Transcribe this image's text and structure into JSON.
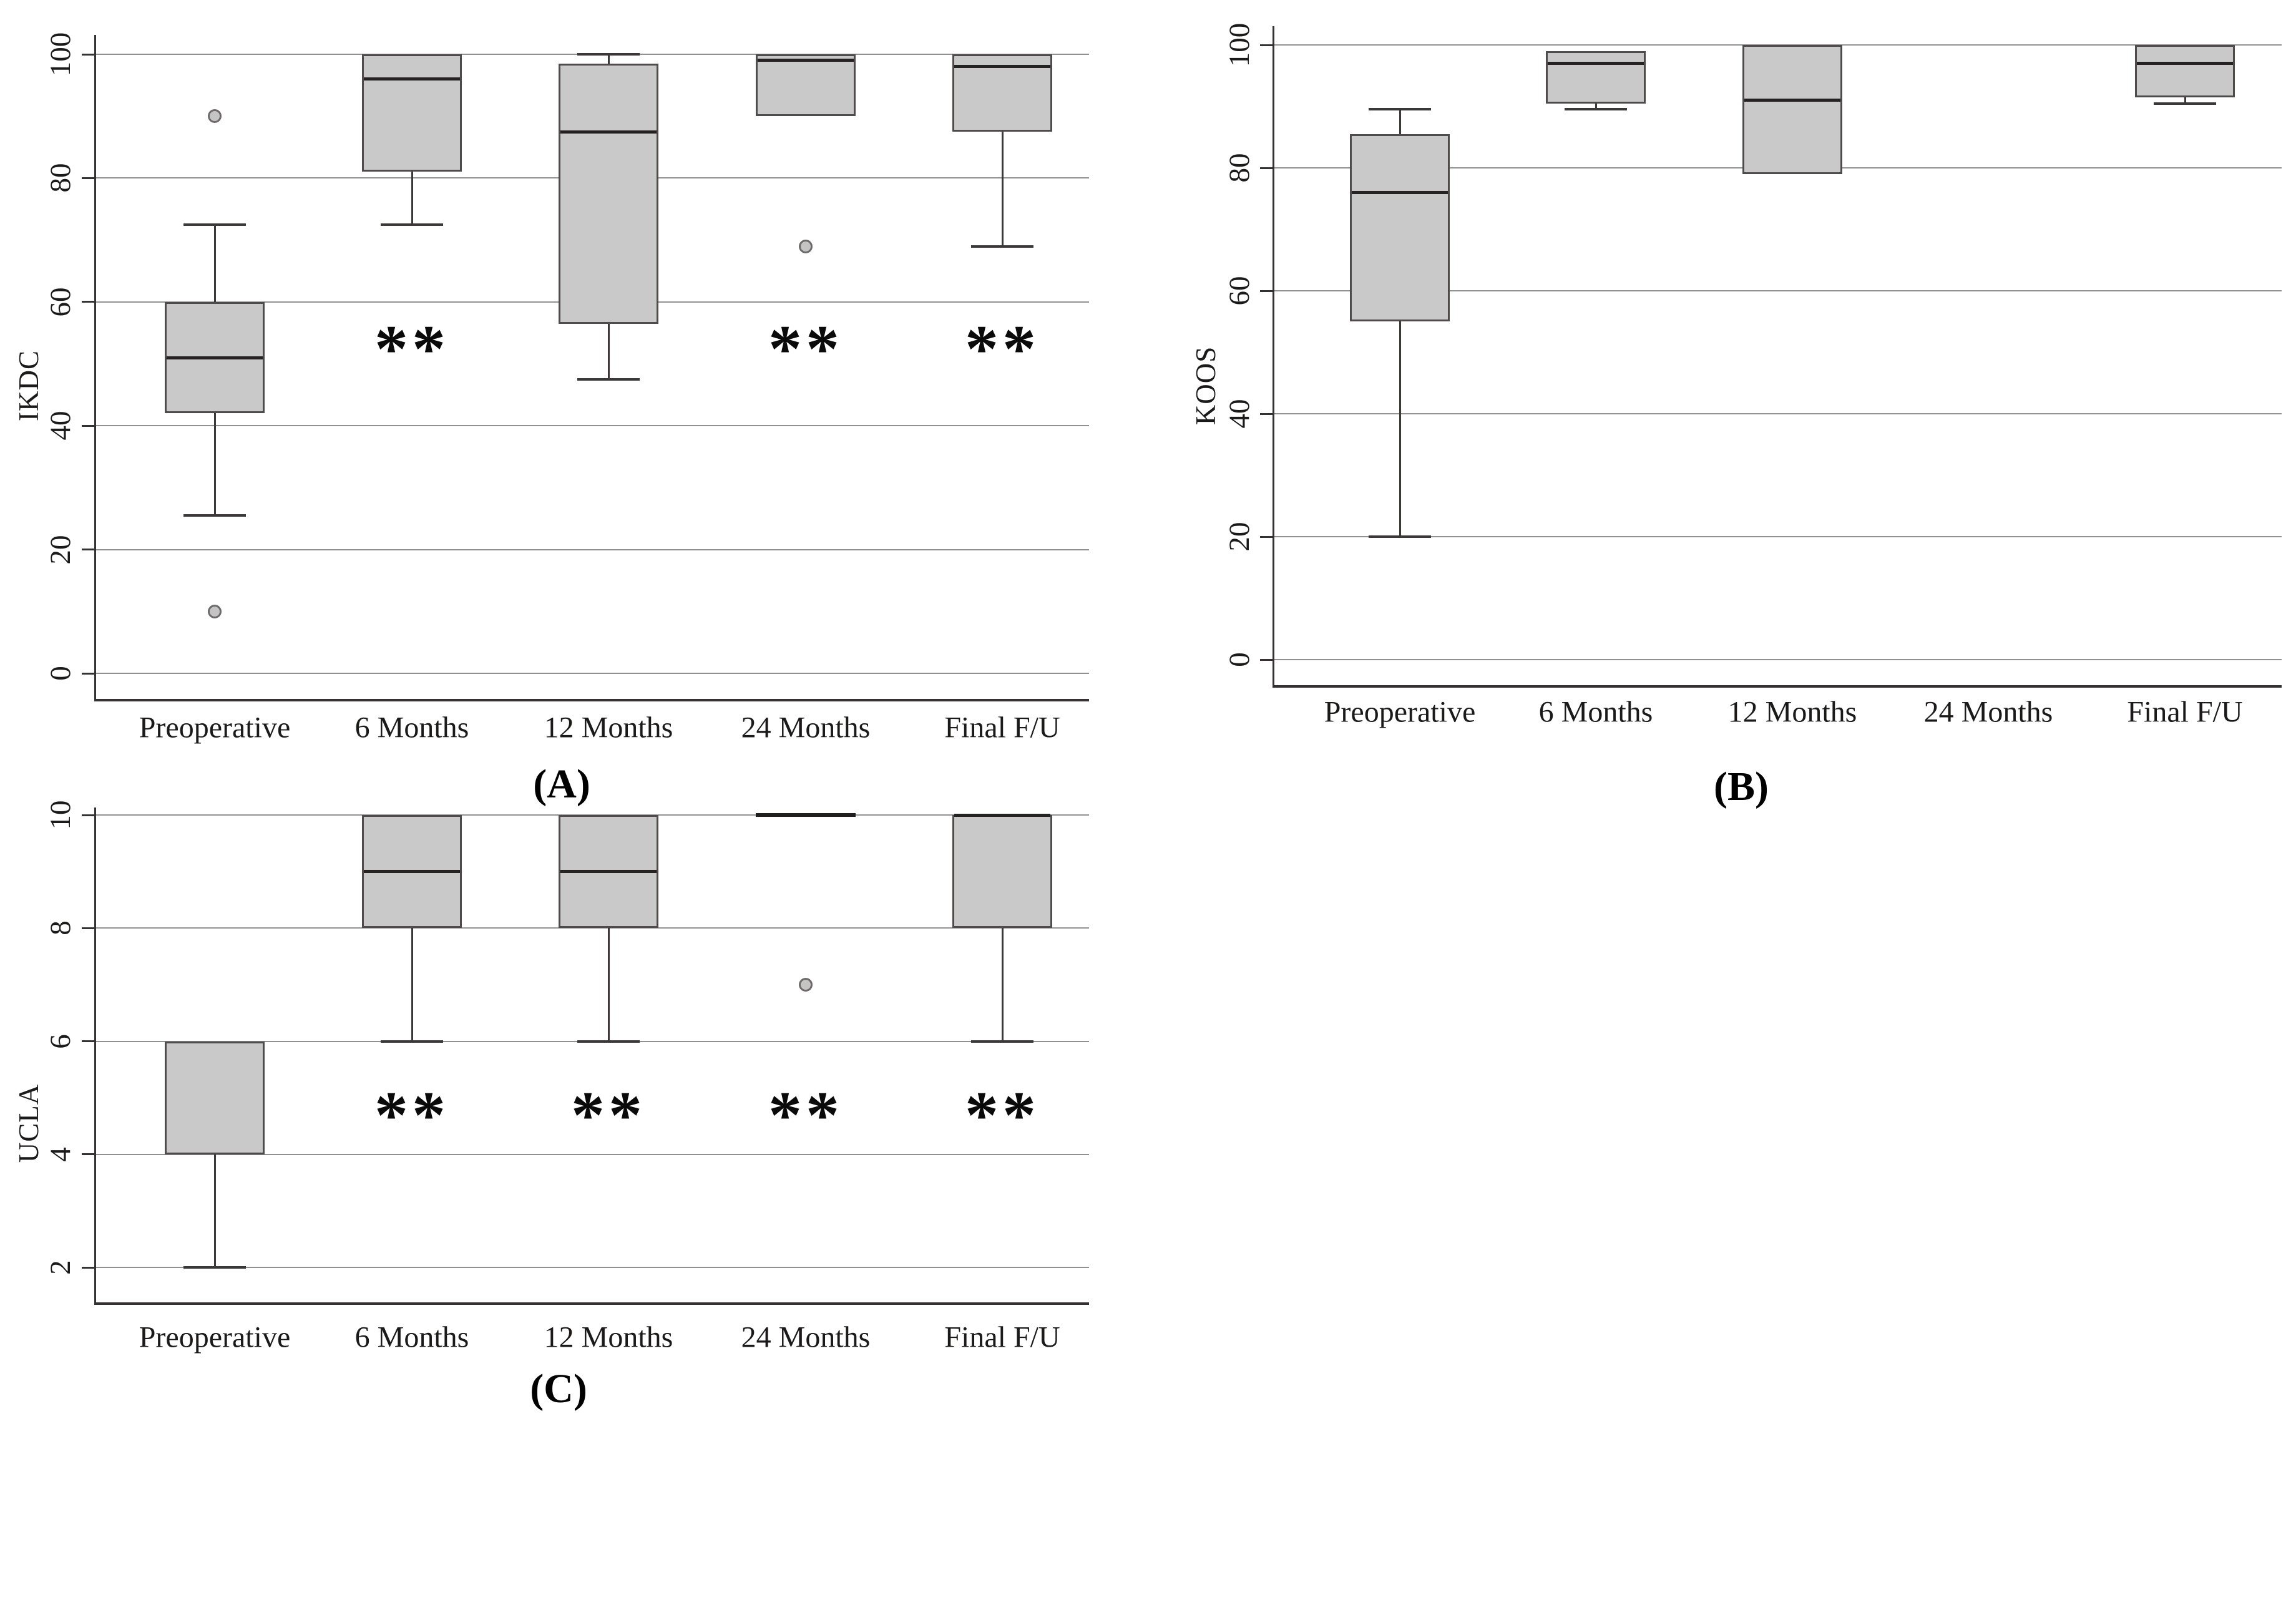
{
  "page": {
    "background": "#ffffff"
  },
  "colors": {
    "box_fill": "#c9c9c9",
    "box_border": "#4f4b4a",
    "median": "#262221",
    "whisker": "#3c3838",
    "gridline": "#919191",
    "axis": "#353130",
    "outlier_fill": "#c4c4c4",
    "outlier_stroke": "#6e6a69",
    "text": "#1c1a19"
  },
  "significance_marker": "**",
  "chart_data": [
    {
      "id": "A",
      "type": "box",
      "caption": "(A)",
      "ylabel": "IKDC",
      "xlabel": "",
      "ylim": [
        0,
        100
      ],
      "yticks": [
        0,
        20,
        40,
        60,
        80,
        100
      ],
      "grid": true,
      "categories": [
        "Preoperative",
        "6 Months",
        "12 Months",
        "24 Months",
        "Final F/U"
      ],
      "series": [
        {
          "category": "Preoperative",
          "whisker_low": 25.5,
          "q1": 42,
          "median": 51,
          "q3": 60,
          "whisker_high": 72.5,
          "outliers": [
            90,
            10
          ],
          "significant": false
        },
        {
          "category": "6 Months",
          "whisker_low": 72.5,
          "q1": 81,
          "median": 96,
          "q3": 100,
          "whisker_high": null,
          "outliers": [],
          "significant": true
        },
        {
          "category": "12 Months",
          "whisker_low": 47.5,
          "q1": 56.5,
          "median": 87.5,
          "q3": 98.5,
          "whisker_high": 100,
          "outliers": [],
          "significant": false
        },
        {
          "category": "24 Months",
          "whisker_low": null,
          "q1": 90,
          "median": 99,
          "q3": 100,
          "whisker_high": null,
          "outliers": [
            69
          ],
          "significant": true
        },
        {
          "category": "Final F/U",
          "whisker_low": 69,
          "q1": 87.5,
          "median": 98,
          "q3": 100,
          "whisker_high": null,
          "outliers": [],
          "significant": true
        }
      ]
    },
    {
      "id": "B",
      "type": "box",
      "caption": "(B)",
      "ylabel": "KOOS",
      "xlabel": "",
      "ylim": [
        0,
        100
      ],
      "yticks": [
        0,
        20,
        40,
        60,
        80,
        100
      ],
      "grid": true,
      "categories": [
        "Preoperative",
        "6 Months",
        "12 Months",
        "24 Months",
        "Final F/U"
      ],
      "series": [
        {
          "category": "Preoperative",
          "whisker_low": 20,
          "q1": 55,
          "median": 76,
          "q3": 85.5,
          "whisker_high": 89.5,
          "outliers": [],
          "significant": false
        },
        {
          "category": "6 Months",
          "whisker_low": 89.5,
          "q1": 90.5,
          "median": 97,
          "q3": 99,
          "whisker_high": null,
          "outliers": [],
          "significant": false
        },
        {
          "category": "12 Months",
          "whisker_low": null,
          "q1": 79,
          "median": 91,
          "q3": 100,
          "whisker_high": null,
          "outliers": [],
          "significant": false
        },
        {
          "category": "24 Months",
          "whisker_low": null,
          "q1": null,
          "median": null,
          "q3": null,
          "whisker_high": null,
          "outliers": [],
          "significant": false
        },
        {
          "category": "Final F/U",
          "whisker_low": 90.5,
          "q1": 91.5,
          "median": 97,
          "q3": 100,
          "whisker_high": null,
          "outliers": [],
          "significant": false
        }
      ]
    },
    {
      "id": "C",
      "type": "box",
      "caption": "(C)",
      "ylabel": "UCLA",
      "xlabel": "",
      "ylim": [
        2,
        10
      ],
      "yticks": [
        2,
        4,
        6,
        8,
        10
      ],
      "grid": true,
      "categories": [
        "Preoperative",
        "6 Months",
        "12 Months",
        "24 Months",
        "Final F/U"
      ],
      "series": [
        {
          "category": "Preoperative",
          "whisker_low": 2,
          "q1": 4,
          "median": null,
          "q3": 6,
          "whisker_high": null,
          "outliers": [],
          "significant": false
        },
        {
          "category": "6 Months",
          "whisker_low": 6,
          "q1": 8,
          "median": 9,
          "q3": 10,
          "whisker_high": null,
          "outliers": [],
          "significant": true
        },
        {
          "category": "12 Months",
          "whisker_low": 6,
          "q1": 8,
          "median": 9,
          "q3": 10,
          "whisker_high": null,
          "outliers": [],
          "significant": true
        },
        {
          "category": "24 Months",
          "whisker_low": null,
          "q1": 10,
          "median": 10,
          "q3": 10,
          "whisker_high": null,
          "outliers": [
            7
          ],
          "significant": true
        },
        {
          "category": "Final F/U",
          "whisker_low": 6,
          "q1": 8,
          "median": 10,
          "q3": 10,
          "whisker_high": null,
          "outliers": [],
          "significant": true
        }
      ]
    }
  ]
}
